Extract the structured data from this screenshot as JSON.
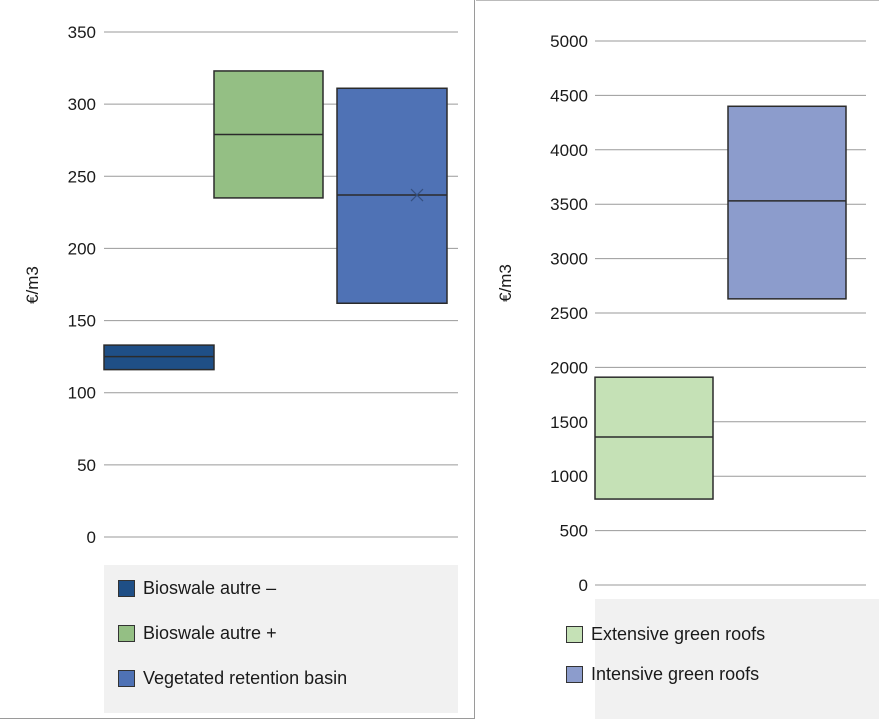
{
  "chart_data": [
    {
      "type": "box",
      "ylabel": "€/m3",
      "ylim": [
        0,
        350
      ],
      "yticks": [
        "0",
        "50",
        "100",
        "150",
        "200",
        "250",
        "300",
        "350"
      ],
      "grid": true,
      "legend_position": "bottom",
      "series": [
        {
          "name": "Bioswale autre –",
          "color": "#1f4f86",
          "low": 116,
          "median": 125,
          "high": 133
        },
        {
          "name": "Bioswale autre +",
          "color": "#94bf84",
          "low": 235,
          "median": 279,
          "high": 323
        },
        {
          "name": "Vegetated retention basin",
          "color": "#4f72b5",
          "low": 162,
          "median": 237,
          "high": 311,
          "mean": 237
        }
      ]
    },
    {
      "type": "box",
      "ylabel": "€/m3",
      "ylim": [
        0,
        5000
      ],
      "yticks": [
        "0",
        "500",
        "1000",
        "1500",
        "2000",
        "2500",
        "3000",
        "3500",
        "4000",
        "4500",
        "5000"
      ],
      "grid": true,
      "legend_position": "bottom",
      "series": [
        {
          "name": "Extensive green roofs",
          "color": "#c5e1b6",
          "low": 790,
          "median": 1360,
          "high": 1910
        },
        {
          "name": "Intensive green roofs",
          "color": "#8c9ccc",
          "low": 2630,
          "median": 3530,
          "high": 4400
        }
      ]
    }
  ]
}
